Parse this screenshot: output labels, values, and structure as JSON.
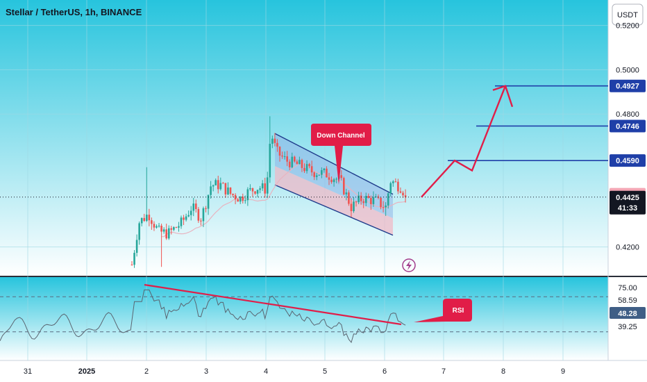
{
  "header": {
    "title": "Stellar / TetherUS, 1h, BINANCE"
  },
  "currency_button": {
    "label": "USDT"
  },
  "colors": {
    "bg_top": "#27c4dd",
    "bg_bottom": "#ffffff",
    "candle_up": "#26a69a",
    "candle_down": "#ef5350",
    "channel_line": "#1e3a8a",
    "level_line": "#1f3fa8",
    "level_badge": "#1f3fa8",
    "arrow": "#e11d48",
    "callout": "#e11d48",
    "rsi_line": "#5a6470"
  },
  "chart_data": [
    {
      "type": "candlestick",
      "title": "Stellar / TetherUS, 1h, BINANCE",
      "x_ticks": [
        "31",
        "2025",
        "2",
        "3",
        "4",
        "5",
        "6",
        "7",
        "8",
        "9"
      ],
      "ylim": [
        0.407,
        0.5315
      ],
      "y_ticks": [
        "0.5200",
        "0.5000",
        "0.4800",
        "0.4200"
      ],
      "last_price": "0.4425",
      "countdown": "41:33",
      "marked_prices": [
        {
          "label": "0.4927",
          "value": 0.4927
        },
        {
          "label": "0.4746",
          "value": 0.4746
        },
        {
          "label": "0.4590",
          "value": 0.459
        },
        {
          "label": "0.4438",
          "value": 0.4438
        }
      ],
      "ohlc_start": {
        "open": 0.412,
        "close": 0.4425,
        "seed": 7
      },
      "annotations": {
        "down_channel_label": "Down Channel",
        "projection_targets": [
          0.459,
          0.4746,
          0.4927
        ]
      }
    },
    {
      "type": "line",
      "title": "RSI",
      "ylim": [
        10,
        95
      ],
      "levels": [
        75.0,
        39.25
      ],
      "tick_labels": [
        "75.00",
        "58.59",
        "48.28",
        "39.25"
      ],
      "current_value": "48.28",
      "trendline_label": "RSI"
    }
  ]
}
